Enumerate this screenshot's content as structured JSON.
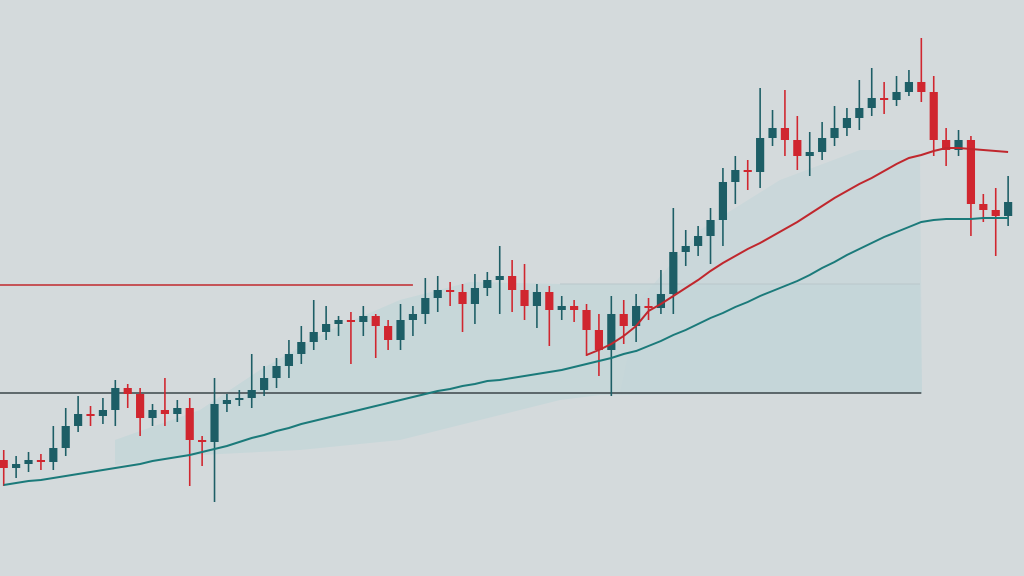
{
  "chart_data": {
    "type": "candlestick",
    "xlim": [
      -0.3,
      82.28
    ],
    "ylim": [
      0,
      576
    ],
    "up_color": "#1d5e66",
    "down_color": "#d0262f",
    "open": [
      116,
      108,
      112,
      116,
      114,
      128,
      150,
      162,
      160,
      166,
      188,
      182,
      158,
      166,
      162,
      168,
      136,
      134,
      172,
      176,
      178,
      186,
      198,
      210,
      222,
      234,
      244,
      252,
      256,
      254,
      260,
      250,
      236,
      256,
      262,
      278,
      286,
      284,
      272,
      288,
      296,
      300,
      286,
      270,
      284,
      266,
      270,
      266,
      246,
      226,
      262,
      250,
      270,
      268,
      282,
      324,
      330,
      340,
      356,
      394,
      406,
      404,
      438,
      448,
      436,
      420,
      424,
      438,
      448,
      458,
      468,
      478,
      476,
      484,
      494,
      484,
      436,
      426,
      436,
      372,
      366,
      360
    ],
    "high": [
      126,
      120,
      124,
      122,
      150,
      168,
      180,
      170,
      178,
      196,
      192,
      188,
      172,
      198,
      176,
      178,
      140,
      198,
      182,
      186,
      222,
      210,
      218,
      236,
      250,
      276,
      270,
      260,
      264,
      270,
      262,
      256,
      272,
      270,
      298,
      300,
      294,
      292,
      302,
      304,
      330,
      316,
      312,
      292,
      290,
      280,
      276,
      272,
      262,
      280,
      276,
      282,
      278,
      306,
      368,
      346,
      350,
      368,
      408,
      420,
      416,
      488,
      466,
      486,
      460,
      444,
      454,
      470,
      468,
      496,
      508,
      494,
      500,
      506,
      538,
      500,
      448,
      446,
      440,
      382,
      388,
      400
    ],
    "low": [
      90,
      98,
      104,
      106,
      106,
      120,
      144,
      150,
      152,
      150,
      168,
      140,
      150,
      150,
      154,
      90,
      110,
      74,
      164,
      170,
      168,
      180,
      188,
      198,
      212,
      226,
      236,
      240,
      212,
      240,
      218,
      226,
      226,
      240,
      252,
      264,
      270,
      244,
      252,
      280,
      262,
      264,
      256,
      248,
      230,
      256,
      254,
      220,
      200,
      180,
      232,
      234,
      256,
      262,
      262,
      310,
      320,
      312,
      330,
      372,
      386,
      388,
      430,
      420,
      406,
      400,
      416,
      430,
      440,
      446,
      460,
      462,
      470,
      480,
      474,
      420,
      410,
      420,
      340,
      354,
      320,
      350
    ],
    "close": [
      108,
      112,
      116,
      114,
      128,
      150,
      162,
      160,
      166,
      188,
      182,
      158,
      166,
      162,
      168,
      136,
      134,
      172,
      176,
      178,
      186,
      198,
      210,
      222,
      234,
      244,
      252,
      256,
      254,
      260,
      250,
      236,
      256,
      262,
      278,
      286,
      284,
      272,
      288,
      296,
      300,
      286,
      270,
      284,
      266,
      270,
      266,
      246,
      226,
      262,
      250,
      270,
      268,
      282,
      324,
      330,
      340,
      356,
      394,
      406,
      404,
      438,
      448,
      436,
      420,
      424,
      438,
      448,
      458,
      468,
      478,
      476,
      484,
      494,
      484,
      436,
      426,
      436,
      372,
      366,
      360,
      374
    ],
    "series": [
      {
        "color": "#1b7a7a",
        "values": [
          91,
          93,
          95,
          96,
          98,
          100,
          102,
          104,
          106,
          108,
          110,
          112,
          115,
          117,
          119,
          121,
          124,
          127,
          130,
          134,
          138,
          141,
          145,
          148,
          152,
          155,
          158,
          161,
          164,
          167,
          170,
          173,
          176,
          179,
          182,
          185,
          187,
          190,
          192,
          195,
          196,
          198,
          200,
          202,
          204,
          206,
          209,
          212,
          215,
          218,
          222,
          225,
          230,
          235,
          241,
          246,
          252,
          258,
          263,
          269,
          274,
          280,
          285,
          290,
          295,
          301,
          308,
          314,
          321,
          327,
          333,
          339,
          344,
          349,
          354,
          356,
          357,
          357,
          357,
          358,
          358,
          358
        ]
      },
      {
        "color": "#c0272d",
        "values": [
          null,
          null,
          null,
          null,
          null,
          null,
          null,
          null,
          null,
          null,
          null,
          null,
          null,
          null,
          null,
          null,
          null,
          null,
          null,
          null,
          null,
          null,
          null,
          null,
          null,
          null,
          null,
          null,
          null,
          null,
          null,
          null,
          null,
          null,
          null,
          null,
          null,
          null,
          null,
          null,
          null,
          null,
          null,
          null,
          null,
          null,
          null,
          221,
          226,
          232,
          240,
          250,
          265,
          272,
          280,
          288,
          296,
          305,
          313,
          320,
          327,
          333,
          340,
          347,
          354,
          362,
          370,
          378,
          385,
          392,
          398,
          405,
          412,
          418,
          421,
          425,
          428,
          428,
          427,
          426,
          425,
          424
        ]
      }
    ],
    "hlines": [
      {
        "value": 291,
        "color": "#c0272d",
        "to": 33
      },
      {
        "value": 183,
        "color": "#3a4448",
        "to": 74
      }
    ]
  }
}
